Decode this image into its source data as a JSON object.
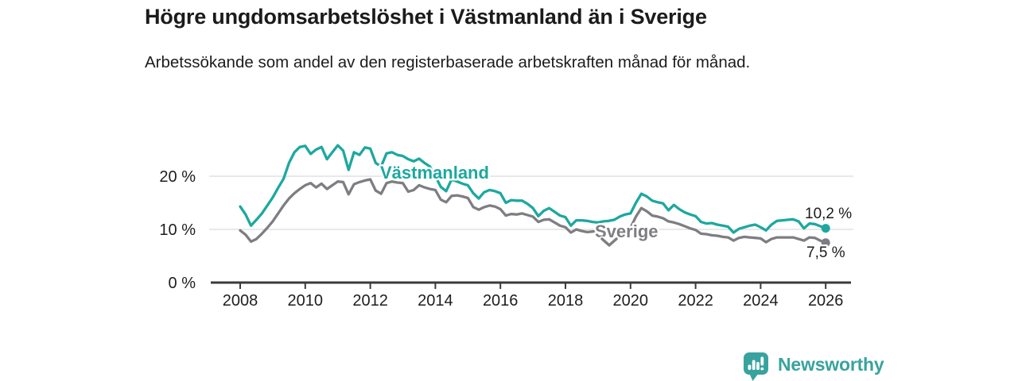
{
  "chart_data": {
    "type": "line",
    "title": "Högre ungdomsarbetslöshet i Västmanland än i Sverige",
    "subtitle": "Arbetssökande som andel av den registerbaserade arbetskraften månad för månad.",
    "unit": "%",
    "x_start_year": 2008,
    "x_end_year": 2026,
    "points_per_year": 6,
    "x_tick_labels": [
      "2008",
      "2010",
      "2012",
      "2014",
      "2016",
      "2018",
      "2020",
      "2022",
      "2024",
      "2026"
    ],
    "y_ticks": [
      {
        "value": 0,
        "label": "0 %"
      },
      {
        "value": 10,
        "label": "10 %"
      },
      {
        "value": 20,
        "label": "20 %"
      }
    ],
    "xlim": [
      2007.1,
      2026.8
    ],
    "ylim": [
      0,
      27
    ],
    "grid": "horizontal",
    "legend": "inline-series-labels",
    "series": [
      {
        "name": "Västmanland",
        "color": "#1ca89f",
        "end_value": 10.2,
        "end_label": "10,2 %",
        "values": [
          14.3,
          12.8,
          10.7,
          11.8,
          13.0,
          14.5,
          16.0,
          17.8,
          19.5,
          22.5,
          24.5,
          25.5,
          25.7,
          24.2,
          25.0,
          25.5,
          23.2,
          24.5,
          25.8,
          24.8,
          21.2,
          24.5,
          24.0,
          25.4,
          25.2,
          22.5,
          21.8,
          24.3,
          24.5,
          24.0,
          23.8,
          23.2,
          22.8,
          23.3,
          22.5,
          21.8,
          20.0,
          18.0,
          17.2,
          19.4,
          19.0,
          18.6,
          18.3,
          16.8,
          15.8,
          17.0,
          17.4,
          17.2,
          16.8,
          15.0,
          15.5,
          15.4,
          15.4,
          14.8,
          14.0,
          12.5,
          13.5,
          14.0,
          13.3,
          12.6,
          12.3,
          10.7,
          11.7,
          11.7,
          11.6,
          11.4,
          11.3,
          11.5,
          11.6,
          11.8,
          12.4,
          12.8,
          13.0,
          15.0,
          16.7,
          16.2,
          15.4,
          15.1,
          14.9,
          13.6,
          14.6,
          13.8,
          13.2,
          12.8,
          12.5,
          11.4,
          11.1,
          11.2,
          10.9,
          10.7,
          10.5,
          9.4,
          10.1,
          10.4,
          10.7,
          10.9,
          10.4,
          9.8,
          10.9,
          11.6,
          11.7,
          11.8,
          11.9,
          11.5,
          10.2,
          11.1,
          11.0,
          10.6,
          10.2
        ]
      },
      {
        "name": "Sverige",
        "color": "#7e7e82",
        "end_value": 7.5,
        "end_label": "7,5 %",
        "values": [
          9.8,
          9.0,
          7.7,
          8.2,
          9.2,
          10.3,
          11.5,
          13.0,
          14.5,
          15.8,
          16.8,
          17.6,
          18.3,
          18.7,
          17.9,
          18.6,
          17.6,
          18.3,
          19.0,
          18.9,
          16.6,
          18.5,
          18.9,
          19.2,
          19.4,
          17.3,
          16.7,
          18.7,
          19.0,
          18.8,
          18.7,
          17.1,
          17.4,
          18.3,
          17.9,
          17.6,
          17.4,
          15.6,
          15.1,
          16.3,
          16.4,
          16.2,
          15.9,
          14.2,
          13.7,
          14.2,
          14.5,
          14.3,
          13.8,
          12.6,
          12.9,
          12.8,
          13.0,
          12.7,
          12.4,
          11.4,
          11.8,
          11.9,
          11.3,
          10.7,
          10.4,
          9.4,
          10.0,
          9.7,
          9.5,
          9.6,
          9.7,
          9.0,
          9.0,
          9.1,
          9.2,
          9.6,
          10.3,
          12.4,
          14.0,
          13.4,
          12.6,
          12.4,
          12.1,
          11.5,
          11.3,
          11.0,
          10.6,
          10.2,
          9.9,
          9.2,
          9.1,
          8.9,
          8.8,
          8.6,
          8.5,
          7.9,
          8.4,
          8.6,
          8.5,
          8.4,
          8.3,
          7.6,
          8.2,
          8.5,
          8.5,
          8.5,
          8.5,
          8.2,
          7.9,
          8.5,
          8.4,
          7.9,
          7.5
        ]
      }
    ],
    "colors": {
      "grid": "#dcdcdc",
      "axis": "#3b3b3b",
      "text": "#1e1e1e"
    }
  },
  "branding": {
    "name": "Newsworthy",
    "color": "#38a39e",
    "icon": "bar-chart-speech-bubble-icon"
  }
}
